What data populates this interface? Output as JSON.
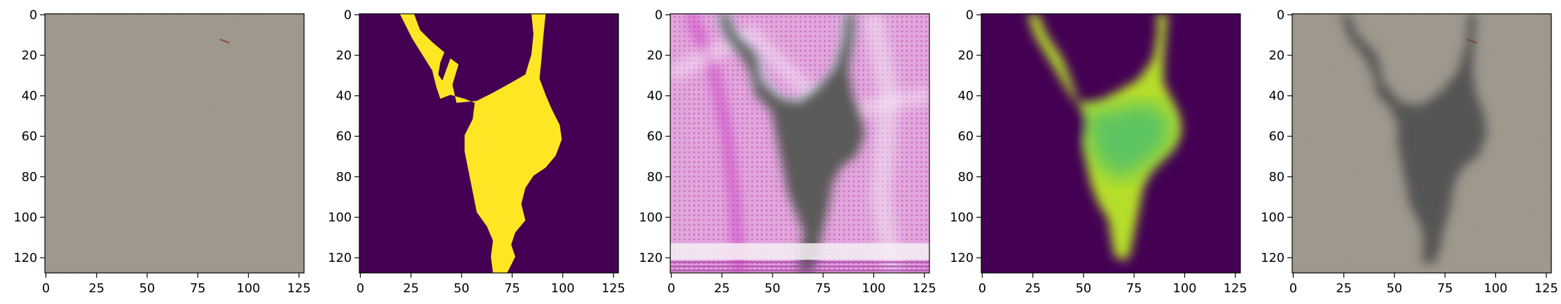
{
  "figure": {
    "panel_count": 5,
    "axes": {
      "x_ticks": [
        0,
        25,
        50,
        75,
        100,
        125
      ],
      "y_ticks": [
        0,
        20,
        40,
        60,
        80,
        100,
        120
      ],
      "xlim": [
        0,
        128
      ],
      "ylim": [
        128,
        0
      ]
    },
    "panels": [
      {
        "content": "concrete-texture",
        "colors": {
          "base": "#9a9486",
          "speck": "#6e6a60"
        }
      },
      {
        "content": "binary-crack-mask",
        "colors": {
          "background": "#440154",
          "crack": "#fde725"
        }
      },
      {
        "content": "generated-crack",
        "colors": {
          "background": "#e2a6dc",
          "grid": "#c060c0",
          "crack": "#5a5a58"
        }
      },
      {
        "content": "soft-crack-mask",
        "colors": {
          "background": "#440154",
          "edge": "#b5de2b",
          "core": "#3dbb74"
        }
      },
      {
        "content": "composited-crack",
        "colors": {
          "base": "#9a9486",
          "crack": "#4a4a4c"
        }
      }
    ]
  }
}
